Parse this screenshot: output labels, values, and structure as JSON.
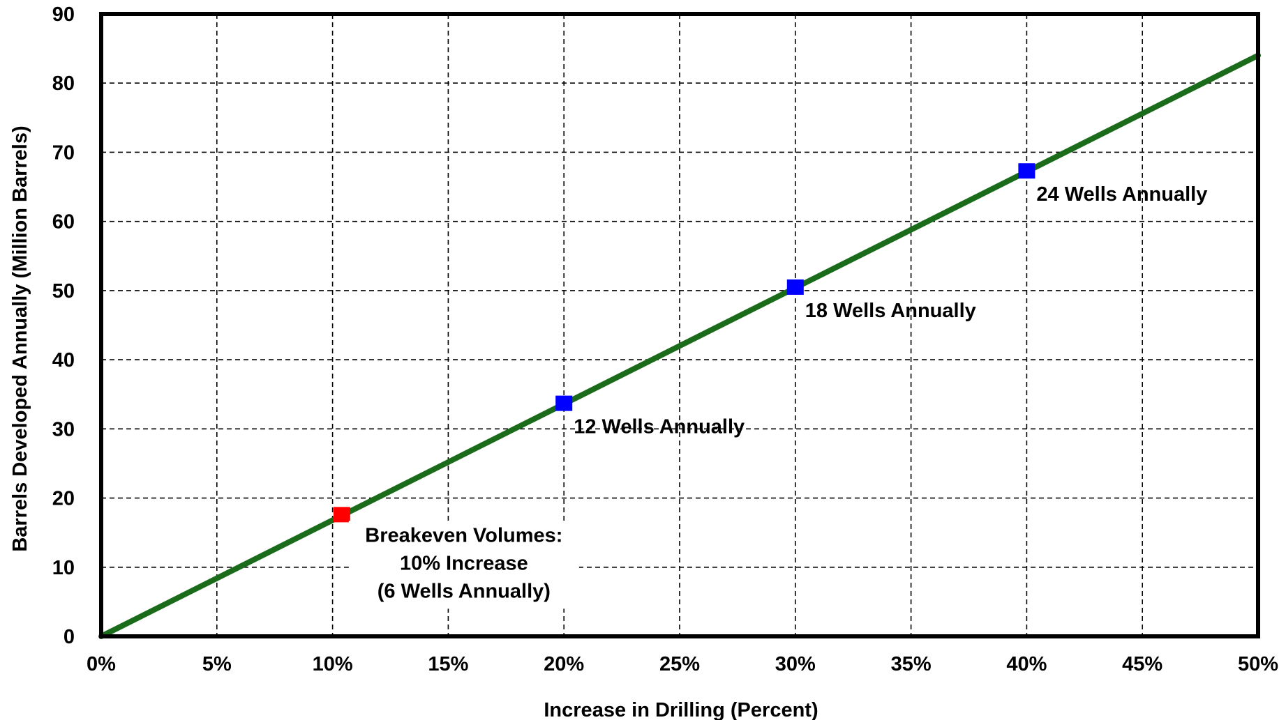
{
  "chart_data": {
    "type": "line",
    "title": "",
    "xlabel": "Increase in Drilling (Percent)",
    "ylabel": "Barrels Developed Annually (Million Barrels)",
    "xlim": [
      0,
      50
    ],
    "ylim": [
      0,
      90
    ],
    "x_ticks": [
      0,
      5,
      10,
      15,
      20,
      25,
      30,
      35,
      40,
      45,
      50
    ],
    "x_tick_labels": [
      "0%",
      "5%",
      "10%",
      "15%",
      "20%",
      "25%",
      "30%",
      "35%",
      "40%",
      "45%",
      "50%"
    ],
    "y_ticks": [
      0,
      10,
      20,
      30,
      40,
      50,
      60,
      70,
      80,
      90
    ],
    "y_tick_labels": [
      "0",
      "10",
      "20",
      "30",
      "40",
      "50",
      "60",
      "70",
      "80",
      "90"
    ],
    "grid": true,
    "grid_style": "dashed",
    "series": [
      {
        "color": "#1a6b1a",
        "x": [
          0,
          50
        ],
        "y": [
          0,
          84
        ]
      }
    ],
    "markers": [
      {
        "x": 10.4,
        "y": 17.5,
        "color": "#ff0000",
        "label_lines": [
          "Breakeven Volumes:",
          "10% Increase",
          "(6 Wells Annually)"
        ]
      },
      {
        "x": 20,
        "y": 33.6,
        "color": "#0000ff",
        "label_lines": [
          "12 Wells Annually"
        ]
      },
      {
        "x": 30,
        "y": 50.4,
        "color": "#0000ff",
        "label_lines": [
          "18 Wells Annually"
        ]
      },
      {
        "x": 40,
        "y": 67.2,
        "color": "#0000ff",
        "label_lines": [
          "24 Wells Annually"
        ]
      }
    ]
  }
}
